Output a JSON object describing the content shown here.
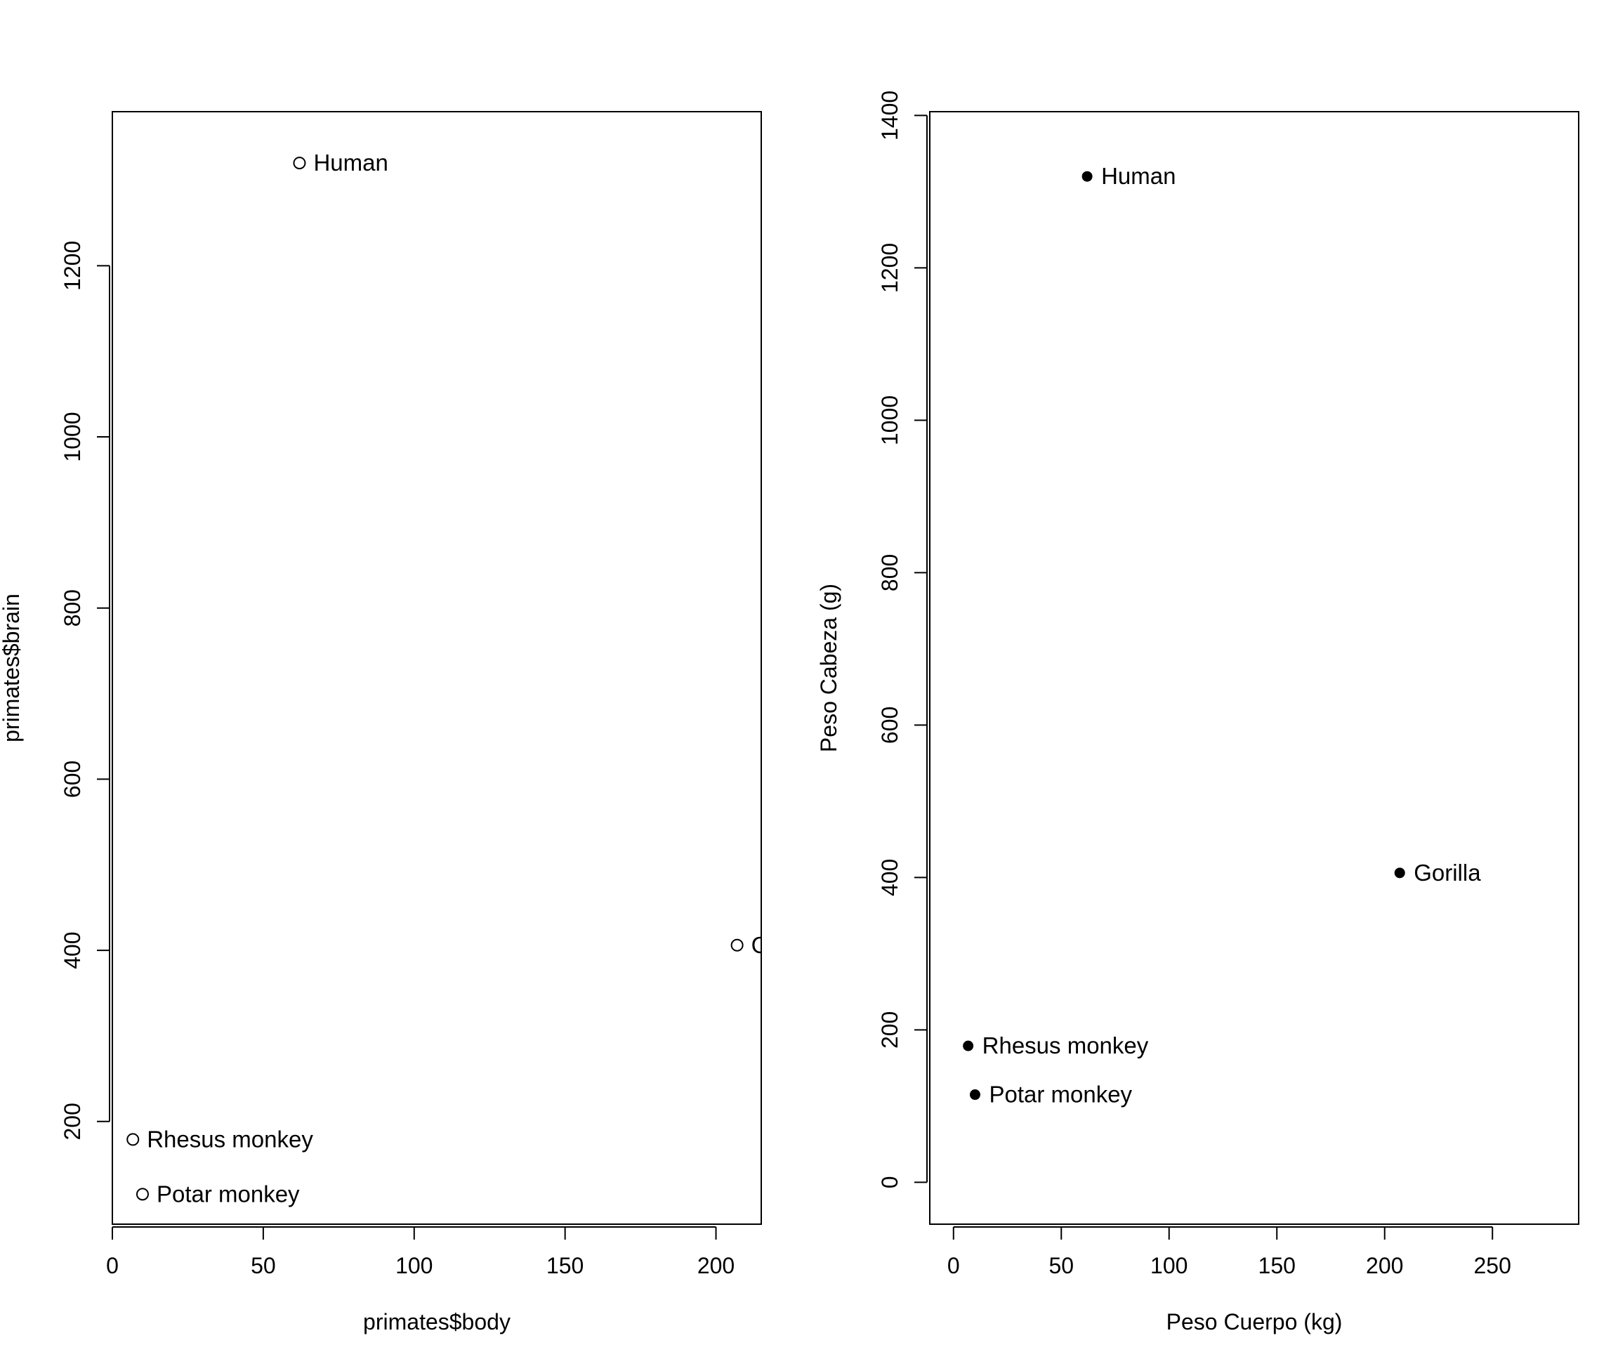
{
  "chart_data": [
    {
      "type": "scatter",
      "marker": "open-circle",
      "title": "",
      "xlabel": "primates$body",
      "ylabel": "primates$brain",
      "xlim": [
        0,
        215
      ],
      "ylim": [
        80,
        1380
      ],
      "xticks": [
        0,
        50,
        100,
        150,
        200
      ],
      "yticks": [
        200,
        400,
        600,
        800,
        1000,
        1200
      ],
      "points": [
        {
          "label": "Human",
          "x": 62,
          "y": 1320
        },
        {
          "label": "Gorilla",
          "x": 207,
          "y": 406
        },
        {
          "label": "Rhesus monkey",
          "x": 6.8,
          "y": 179
        },
        {
          "label": "Potar monkey",
          "x": 10,
          "y": 115
        }
      ],
      "visible_point_labels": [
        "Human",
        "Rhesus monkey",
        "Potar monkey"
      ],
      "clipped_label_fragment": "G",
      "grid": false
    },
    {
      "type": "scatter",
      "marker": "filled-circle",
      "title": "",
      "xlabel": "Peso Cuerpo (kg)",
      "ylabel": "Peso Cabeza (g)",
      "xlim": [
        -11,
        290
      ],
      "ylim": [
        -55,
        1405
      ],
      "xticks": [
        0,
        50,
        100,
        150,
        200,
        250
      ],
      "yticks": [
        0,
        200,
        400,
        600,
        800,
        1000,
        1200,
        1400
      ],
      "points": [
        {
          "label": "Human",
          "x": 62,
          "y": 1320
        },
        {
          "label": "Gorilla",
          "x": 207,
          "y": 406
        },
        {
          "label": "Rhesus monkey",
          "x": 6.8,
          "y": 179
        },
        {
          "label": "Potar monkey",
          "x": 10,
          "y": 115
        }
      ],
      "grid": false
    }
  ]
}
